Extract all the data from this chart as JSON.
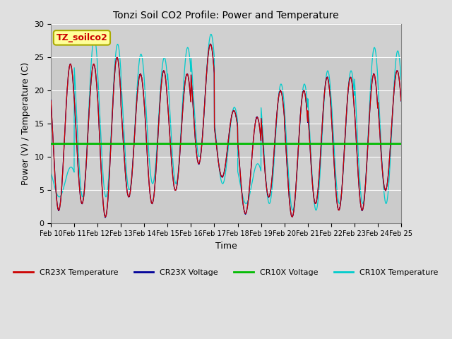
{
  "title": "Tonzi Soil CO2 Profile: Power and Temperature",
  "xlabel": "Time",
  "ylabel": "Power (V) / Temperature (C)",
  "xlim": [
    0,
    15
  ],
  "ylim": [
    0,
    30
  ],
  "yticks": [
    0,
    5,
    10,
    15,
    20,
    25,
    30
  ],
  "xtick_labels": [
    "Feb 10",
    "Feb 11",
    "Feb 12",
    "Feb 13",
    "Feb 14",
    "Feb 15",
    "Feb 16",
    "Feb 17",
    "Feb 18",
    "Feb 19",
    "Feb 20",
    "Feb 21",
    "Feb 22",
    "Feb 23",
    "Feb 24",
    "Feb 25"
  ],
  "horizontal_line_y": 12.0,
  "cr23x_temp_color": "#CC0000",
  "cr23x_volt_color": "#000099",
  "cr10x_volt_color": "#00BB00",
  "cr10x_temp_color": "#00CCCC",
  "bg_color": "#E0E0E0",
  "plot_bg_color": "#D0D0D0",
  "annotation_text": "TZ_soilco2",
  "annotation_bg": "#FFFF99",
  "annotation_border": "#AAAA00",
  "annotation_text_color": "#CC0000",
  "legend_entries": [
    "CR23X Temperature",
    "CR23X Voltage",
    "CR10X Voltage",
    "CR10X Temperature"
  ],
  "legend_colors": [
    "#CC0000",
    "#000099",
    "#00BB00",
    "#00CCCC"
  ],
  "figsize": [
    6.4,
    4.8
  ],
  "dpi": 100
}
